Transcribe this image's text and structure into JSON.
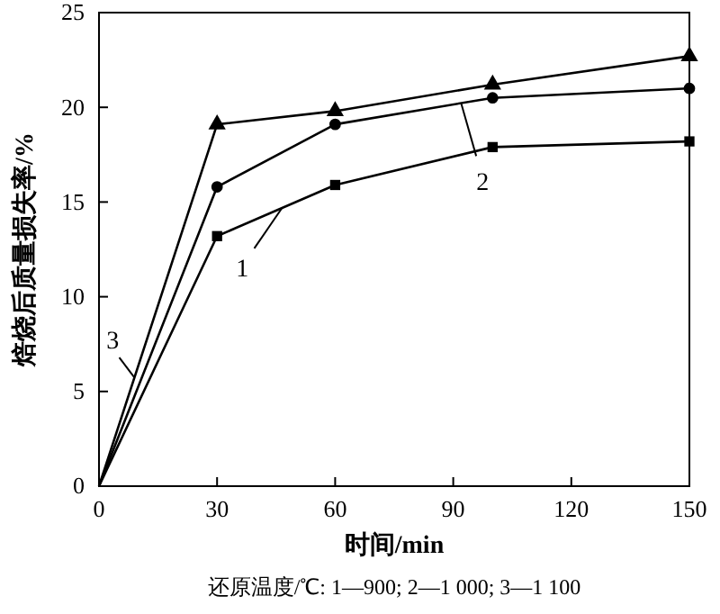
{
  "chart_data": {
    "type": "line",
    "xlabel": "时间/min",
    "ylabel": "焙烧后质量损失率/%",
    "x": [
      0,
      30,
      60,
      100,
      150
    ],
    "xlim": [
      0,
      150
    ],
    "xticks": [
      0,
      30,
      60,
      90,
      120,
      150
    ],
    "ylim": [
      0,
      25
    ],
    "yticks": [
      0,
      5,
      10,
      15,
      20,
      25
    ],
    "grid": false,
    "legend": "center",
    "line_style": "solid",
    "series": [
      {
        "name": "1",
        "color": "#000000",
        "marker": "square",
        "values": [
          0,
          13.2,
          15.9,
          17.9,
          18.2
        ]
      },
      {
        "name": "2",
        "color": "#000000",
        "marker": "circle",
        "values": [
          0,
          15.8,
          19.1,
          20.5,
          21.0
        ]
      },
      {
        "name": "3",
        "color": "#000000",
        "marker": "triangle",
        "values": [
          0,
          19.1,
          19.8,
          21.2,
          22.7
        ]
      }
    ],
    "annotations": [
      "还原温度/℃: 1—900; 2—1 000; 3—1 100"
    ]
  }
}
